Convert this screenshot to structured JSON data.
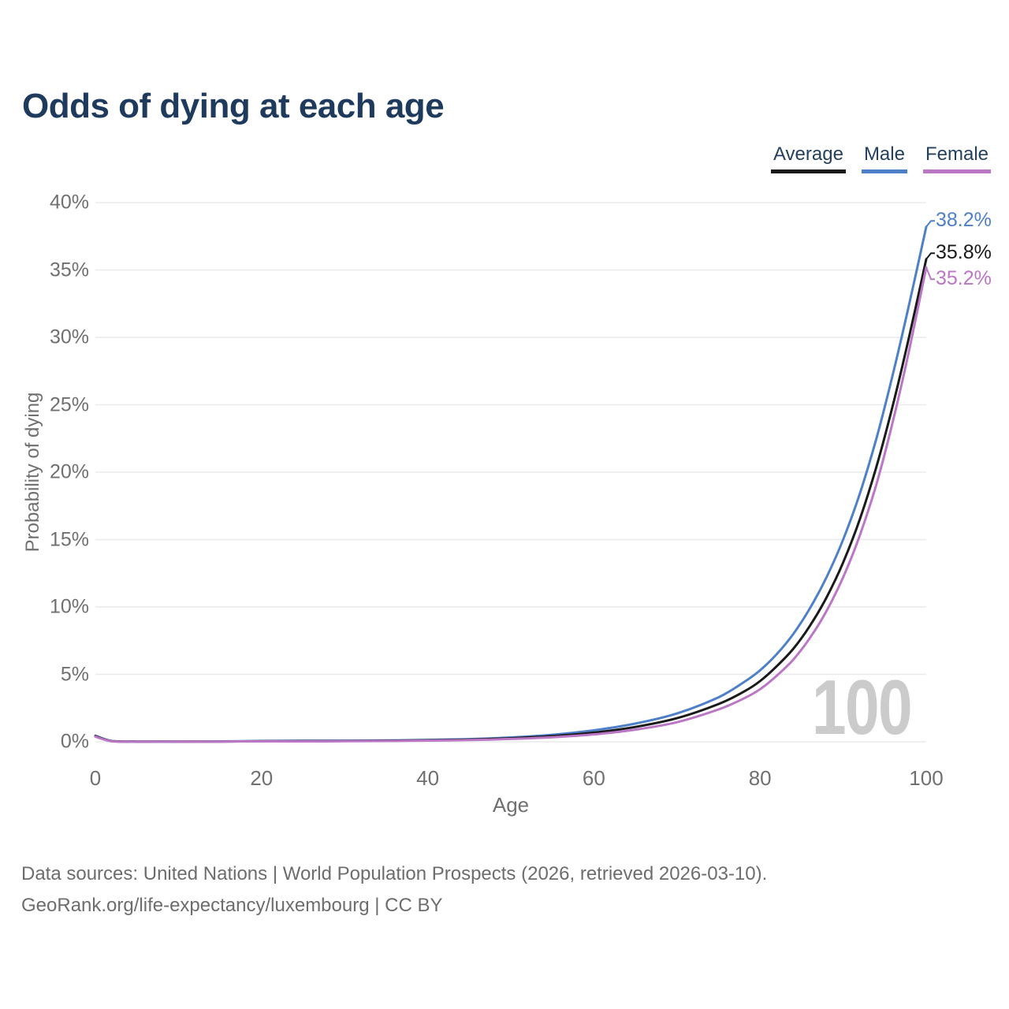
{
  "chart_data": {
    "type": "line",
    "title": "Odds of dying at each age",
    "xlabel": "Age",
    "ylabel": "Probability of dying",
    "xlim": [
      0,
      100
    ],
    "ylim": [
      0,
      40
    ],
    "grid": "horizontal",
    "legend_position": "top-right",
    "watermark": "100",
    "gridline_color": "#eaeaec",
    "x_ticks": [
      {
        "value": 0,
        "label": "0"
      },
      {
        "value": 20,
        "label": "20"
      },
      {
        "value": 40,
        "label": "40"
      },
      {
        "value": 60,
        "label": "60"
      },
      {
        "value": 80,
        "label": "80"
      },
      {
        "value": 100,
        "label": "100"
      }
    ],
    "y_ticks": [
      {
        "value": 0,
        "label": "0%"
      },
      {
        "value": 5,
        "label": "5%"
      },
      {
        "value": 10,
        "label": "10%"
      },
      {
        "value": 15,
        "label": "15%"
      },
      {
        "value": 20,
        "label": "20%"
      },
      {
        "value": 25,
        "label": "25%"
      },
      {
        "value": 30,
        "label": "30%"
      },
      {
        "value": 35,
        "label": "35%"
      },
      {
        "value": 40,
        "label": "40%"
      }
    ],
    "x": [
      0,
      2,
      5,
      10,
      15,
      20,
      25,
      30,
      35,
      40,
      45,
      50,
      55,
      60,
      65,
      70,
      75,
      78,
      80,
      82,
      84,
      86,
      88,
      90,
      92,
      94,
      96,
      98,
      100
    ],
    "series": [
      {
        "name": "Average",
        "color": "#1a1a1a",
        "end_label": "35.8%",
        "values": [
          0.42,
          0.04,
          0.02,
          0.01,
          0.02,
          0.04,
          0.05,
          0.06,
          0.08,
          0.11,
          0.16,
          0.26,
          0.42,
          0.68,
          1.1,
          1.75,
          2.8,
          3.7,
          4.5,
          5.6,
          6.9,
          8.6,
          10.7,
          13.3,
          16.5,
          20.4,
          25.0,
          30.2,
          35.8
        ]
      },
      {
        "name": "Male",
        "color": "#4d80c9",
        "end_label": "38.2%",
        "values": [
          0.45,
          0.05,
          0.02,
          0.02,
          0.03,
          0.06,
          0.07,
          0.08,
          0.1,
          0.14,
          0.2,
          0.32,
          0.52,
          0.85,
          1.35,
          2.1,
          3.3,
          4.4,
          5.3,
          6.5,
          8.0,
          9.9,
          12.2,
          15.0,
          18.4,
          22.5,
          27.3,
          32.6,
          38.2
        ]
      },
      {
        "name": "Female",
        "color": "#bb76c6",
        "end_label": "35.2%",
        "values": [
          0.38,
          0.03,
          0.01,
          0.01,
          0.02,
          0.03,
          0.03,
          0.04,
          0.06,
          0.09,
          0.13,
          0.21,
          0.34,
          0.55,
          0.9,
          1.45,
          2.4,
          3.2,
          3.9,
          4.9,
          6.1,
          7.7,
          9.7,
          12.2,
          15.3,
          19.1,
          23.8,
          29.2,
          35.2
        ]
      }
    ]
  },
  "footer": {
    "line1": "Data sources: United Nations | World Population Prospects (2026, retrieved 2026-03-10).",
    "line2": "GeoRank.org/life-expectancy/luxembourg | CC BY"
  }
}
